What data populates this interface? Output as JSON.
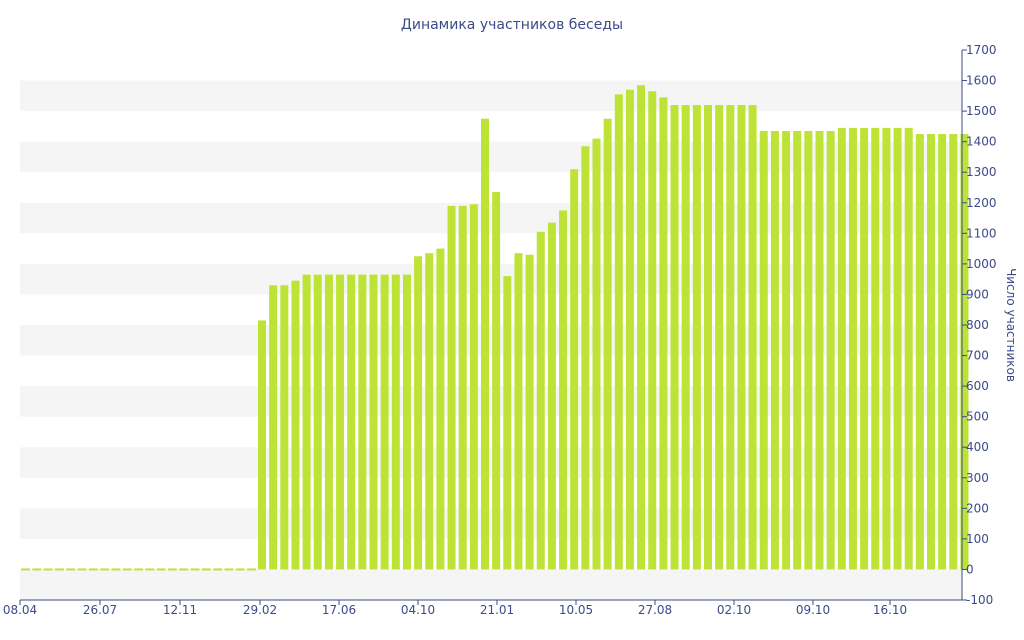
{
  "chart_data": {
    "type": "bar",
    "title": "Динамика участников беседы",
    "xlabel": "",
    "ylabel": "Число участников",
    "ylim": [
      -100,
      1700
    ],
    "y_ticks": [
      -100,
      0,
      100,
      200,
      300,
      400,
      500,
      600,
      700,
      800,
      900,
      1000,
      1100,
      1200,
      1300,
      1400,
      1500,
      1600,
      1700
    ],
    "x_tick_labels": [
      "08.04",
      "26.07",
      "12.11",
      "29.02",
      "17.06",
      "04.10",
      "21.01",
      "10.05",
      "27.08",
      "02.10",
      "09.10",
      "16.10"
    ],
    "grid": "alternating horizontal bands",
    "y_axis_position": "right",
    "values": [
      0,
      0,
      0,
      0,
      0,
      0,
      0,
      0,
      0,
      0,
      0,
      0,
      0,
      0,
      0,
      0,
      0,
      0,
      0,
      0,
      0,
      815,
      930,
      930,
      945,
      965,
      965,
      965,
      965,
      965,
      965,
      965,
      965,
      965,
      965,
      1025,
      1035,
      1050,
      1190,
      1190,
      1195,
      1475,
      1235,
      960,
      1035,
      1030,
      1105,
      1135,
      1175,
      1310,
      1385,
      1410,
      1475,
      1555,
      1570,
      1585,
      1565,
      1545,
      1520,
      1520,
      1520,
      1520,
      1520,
      1520,
      1520,
      1520,
      1435,
      1435,
      1435,
      1435,
      1435,
      1435,
      1435,
      1445,
      1445,
      1445,
      1445,
      1445,
      1445,
      1445,
      1425,
      1425,
      1425,
      1425,
      1425
    ],
    "colors": {
      "bar": "#bde337",
      "band": "#f5f5f5",
      "axis": "#3c4a8a",
      "text": "#3c4a8a"
    }
  }
}
